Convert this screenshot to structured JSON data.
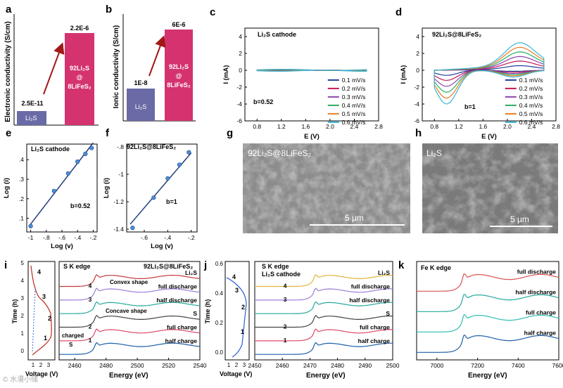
{
  "panels": {
    "a": {
      "letter": "a",
      "ylabel": "Electronic conductivity (S/cm)",
      "bar1": {
        "name": "Li2S",
        "value_label": "2.5E-11",
        "label": "Li₂S"
      },
      "bar2": {
        "name": "92Li2S@8LiFeS2",
        "value_label": "2.2E-6",
        "label_lines": [
          "92Li₂S",
          "@",
          "8LiFeS₂"
        ]
      }
    },
    "b": {
      "letter": "b",
      "ylabel": "Ionic conductivity (S/cm)",
      "bar1": {
        "name": "Li2S",
        "value_label": "1E-8",
        "label": "Li₂S"
      },
      "bar2": {
        "name": "92Li2S@8LiFeS2",
        "value_label": "6E-6",
        "label_lines": [
          "92Li₂S",
          "@",
          "8LiFeS₂"
        ]
      }
    },
    "c": {
      "letter": "c",
      "title": "Li₂S cathode",
      "annotation": "b=0.52"
    },
    "d": {
      "letter": "d",
      "title": "92Li₂S@8LiFeS₂",
      "annotation": "b=1"
    },
    "e": {
      "letter": "e",
      "title": "Li₂S cathode",
      "annotation": "b=0.52"
    },
    "f": {
      "letter": "f",
      "title": "92Li₂S@8LiFeS₂",
      "annotation": "b=1"
    },
    "g": {
      "letter": "g",
      "caption": "92Li₂S@8LiFeS₂",
      "scalebar": "5 μm"
    },
    "h": {
      "letter": "h",
      "caption": "Li₂S",
      "scalebar": "5 μm"
    },
    "i": {
      "letter": "i",
      "title": "S K edge",
      "sample": "92Li₂S@8LiFeS₂",
      "inset": {
        "ylabel": "Time (h)",
        "xlabel": "Voltage (V)",
        "yticks": [
          "0",
          "1",
          "2",
          "3",
          "4",
          "5"
        ],
        "xticks": [
          "1",
          "2",
          "3"
        ],
        "points": [
          "4",
          "3",
          "2",
          "1"
        ]
      },
      "labels": [
        "Li₂S",
        "full discharge",
        "half discharge",
        "S",
        "full charge",
        "half charge"
      ],
      "numbers": [
        "4",
        "3",
        "2",
        "1"
      ],
      "notes": [
        "Convex shape",
        "Concave shape",
        "charged",
        "S"
      ],
      "xlabel": "Energy (eV)",
      "xticks": [
        "2460",
        "2480",
        "2500",
        "2520",
        "2540"
      ]
    },
    "j": {
      "letter": "j",
      "title": "S K edge",
      "subtitle": "Li₂S cathode",
      "inset": {
        "ylabel": "Time (h)",
        "xlabel": "Voltage (V)",
        "yticks": [
          "0.0",
          "0.2",
          "0.4",
          "0.6"
        ],
        "xticks": [
          "1",
          "2",
          "3"
        ],
        "points": [
          "4",
          "3",
          "2",
          "1"
        ]
      },
      "labels": [
        "Li₂S",
        "full discharge",
        "half discharge",
        "S",
        "full charge",
        "half charge"
      ],
      "numbers": [
        "4",
        "3",
        "2",
        "1"
      ],
      "xlabel": "Energy (eV)",
      "xticks": [
        "2450",
        "2460",
        "2470",
        "2480",
        "2490",
        "2500"
      ]
    },
    "k": {
      "letter": "k",
      "title": "Fe K edge",
      "labels": [
        "full discharge",
        "half discharge",
        "full charge",
        "half charge"
      ],
      "xlabel": "Energy (eV)",
      "xticks": [
        "7000",
        "7200",
        "7400",
        "7600"
      ]
    }
  },
  "watermark": "© 水漫小储",
  "scan_rates": [
    "0.1 mV/s",
    "0.2 mV/s",
    "0.3 mV/s",
    "0.4 mV/s",
    "0.5 mV/s",
    "0.6 mV/s"
  ],
  "colors": {
    "bar_li2s": "#6a6aa6",
    "bar_composite": "#d4336f",
    "arrow": "#a01818",
    "rates": [
      "#1f3d99",
      "#c2185b",
      "#8e44ad",
      "#27ae60",
      "#e67e22",
      "#3ab5d8"
    ],
    "fit_line": "#1f3d7a",
    "points": "#4a90d9",
    "xas_i": [
      "#c23b3b",
      "#9b7fd6",
      "#24a99a",
      "#444444",
      "#e0486a",
      "#1f5fa8"
    ],
    "xas_j": [
      "#e2b43a",
      "#9b7fd6",
      "#24a99a",
      "#444444",
      "#e0486a",
      "#1f5fa8"
    ],
    "xas_k": [
      "#d9534f",
      "#24a99a",
      "#2bbfb0",
      "#1f5fa8"
    ]
  },
  "chart_data": [
    {
      "panel": "a",
      "type": "bar",
      "title": "",
      "ylabel": "Electronic conductivity (S/cm)",
      "scale": "log",
      "categories": [
        "Li2S",
        "92Li2S@8LiFeS2"
      ],
      "values": [
        2.5e-11,
        2.2e-06
      ],
      "value_labels": [
        "2.5E-11",
        "2.2E-6"
      ]
    },
    {
      "panel": "b",
      "type": "bar",
      "title": "",
      "ylabel": "Ionic conductivity (S/cm)",
      "scale": "log",
      "categories": [
        "Li2S",
        "92Li2S@8LiFeS2"
      ],
      "values": [
        1e-08,
        6e-06
      ],
      "value_labels": [
        "1E-8",
        "6E-6"
      ]
    },
    {
      "panel": "c",
      "type": "line",
      "title": "Li2S cathode",
      "xlabel": "E (V)",
      "ylabel": "I (mA)",
      "xlim": [
        0.6,
        2.8
      ],
      "ylim": [
        -6,
        5
      ],
      "xticks": [
        0.8,
        1.2,
        1.6,
        2.0,
        2.4,
        2.8
      ],
      "yticks": [
        -6,
        -4,
        -2,
        0,
        2,
        4
      ],
      "series": [
        {
          "name": "0.1 mV/s",
          "amplitude": 0.02,
          "offset": 0.0
        },
        {
          "name": "0.2 mV/s",
          "amplitude": 0.03,
          "offset": 0.01
        },
        {
          "name": "0.3 mV/s",
          "amplitude": 0.04,
          "offset": 0.02
        },
        {
          "name": "0.4 mV/s",
          "amplitude": 0.05,
          "offset": 0.03
        },
        {
          "name": "0.5 mV/s",
          "amplitude": 0.06,
          "offset": 0.04
        },
        {
          "name": "0.6 mV/s",
          "amplitude": 0.07,
          "offset": 0.05
        }
      ]
    },
    {
      "panel": "d",
      "type": "line",
      "title": "92Li2S@8LiFeS2",
      "xlabel": "E (V)",
      "ylabel": "I (mA)",
      "xlim": [
        0.6,
        2.8
      ],
      "ylim": [
        -6,
        5
      ],
      "xticks": [
        0.8,
        1.2,
        1.6,
        2.0,
        2.4,
        2.8
      ],
      "yticks": [
        -6,
        -4,
        -2,
        0,
        2,
        4
      ],
      "series": [
        {
          "name": "0.1 mV/s",
          "ox_peak": 0.5,
          "red_peak": -0.6
        },
        {
          "name": "0.2 mV/s",
          "ox_peak": 1.0,
          "red_peak": -1.2
        },
        {
          "name": "0.3 mV/s",
          "ox_peak": 1.5,
          "red_peak": -1.9
        },
        {
          "name": "0.4 mV/s",
          "ox_peak": 2.0,
          "red_peak": -2.6
        },
        {
          "name": "0.5 mV/s",
          "ox_peak": 2.5,
          "red_peak": -3.3
        },
        {
          "name": "0.6 mV/s",
          "ox_peak": 3.0,
          "red_peak": -4.0
        }
      ]
    },
    {
      "panel": "e",
      "type": "scatter",
      "title": "Li2S cathode",
      "xlabel": "Log (v)",
      "ylabel": "Log (i)",
      "xlim": [
        -1.05,
        -0.15
      ],
      "ylim": [
        0.03,
        0.48
      ],
      "xticks": [
        -1.0,
        -0.8,
        -0.6,
        -0.4,
        -0.2
      ],
      "yticks": [
        0.1,
        0.2,
        0.3,
        0.4
      ],
      "x": [
        -1.0,
        -0.7,
        -0.52,
        -0.4,
        -0.3,
        -0.22
      ],
      "y": [
        0.06,
        0.24,
        0.33,
        0.39,
        0.43,
        0.46
      ],
      "fit": {
        "slope": 0.52
      }
    },
    {
      "panel": "f",
      "type": "scatter",
      "title": "92Li2S@8LiFeS2",
      "xlabel": "Log (v)",
      "ylabel": "Log (i)",
      "xlim": [
        -0.75,
        -0.15
      ],
      "ylim": [
        -1.42,
        -0.78
      ],
      "xticks": [
        -0.6,
        -0.4,
        -0.2
      ],
      "yticks": [
        -0.8,
        -1.0,
        -1.2,
        -1.4
      ],
      "x": [
        -0.7,
        -0.52,
        -0.4,
        -0.3,
        -0.22
      ],
      "y": [
        -1.39,
        -1.17,
        -1.03,
        -0.93,
        -0.84
      ],
      "fit": {
        "slope": 1.0
      }
    },
    {
      "panel": "i",
      "type": "line",
      "title": "S K edge",
      "xlabel": "Energy (eV)",
      "xlim": [
        2450,
        2540
      ],
      "xticks": [
        2460,
        2480,
        2500,
        2520,
        2540
      ],
      "series": [
        {
          "name": "Li2S",
          "offset": 6
        },
        {
          "name": "full discharge",
          "offset": 5
        },
        {
          "name": "half discharge",
          "offset": 4
        },
        {
          "name": "S",
          "offset": 3
        },
        {
          "name": "full charge",
          "offset": 2
        },
        {
          "name": "half charge",
          "offset": 1
        }
      ]
    },
    {
      "panel": "j",
      "type": "line",
      "title": "S K edge",
      "xlabel": "Energy (eV)",
      "xlim": [
        2450,
        2500
      ],
      "xticks": [
        2450,
        2460,
        2470,
        2480,
        2490,
        2500
      ],
      "series": [
        {
          "name": "Li2S",
          "offset": 6
        },
        {
          "name": "full discharge",
          "offset": 5
        },
        {
          "name": "half discharge",
          "offset": 4
        },
        {
          "name": "S",
          "offset": 3
        },
        {
          "name": "full charge",
          "offset": 2
        },
        {
          "name": "half charge",
          "offset": 1
        }
      ]
    },
    {
      "panel": "k",
      "type": "line",
      "title": "Fe K edge",
      "xlabel": "Energy (eV)",
      "xlim": [
        6900,
        7600
      ],
      "xticks": [
        7000,
        7200,
        7400,
        7600
      ],
      "series": [
        {
          "name": "full discharge",
          "offset": 4
        },
        {
          "name": "half discharge",
          "offset": 3
        },
        {
          "name": "full charge",
          "offset": 2
        },
        {
          "name": "half charge",
          "offset": 1
        }
      ]
    }
  ]
}
